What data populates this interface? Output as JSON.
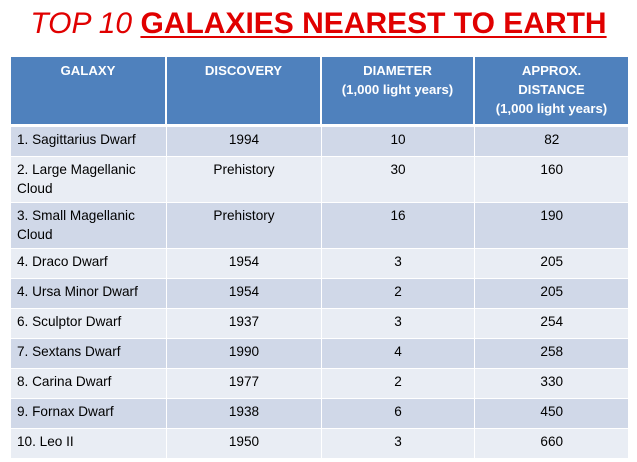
{
  "title": {
    "prefix": "TOP 10 ",
    "main": "GALAXIES NEAREST TO EARTH"
  },
  "columns": [
    {
      "line1": "GALAXY",
      "line2": "",
      "line3": ""
    },
    {
      "line1": "DISCOVERY",
      "line2": "",
      "line3": ""
    },
    {
      "line1": "DIAMETER",
      "line2": "(1,000 light years)",
      "line3": ""
    },
    {
      "line1": "APPROX.",
      "line2": "DISTANCE",
      "line3": "(1,000 light years)"
    }
  ],
  "rows": [
    {
      "galaxy": "1. Sagittarius Dwarf",
      "discovery": "1994",
      "diameter": "10",
      "distance": "82"
    },
    {
      "galaxy": "2. Large Magellanic Cloud",
      "discovery": "Prehistory",
      "diameter": "30",
      "distance": "160"
    },
    {
      "galaxy": "3. Small Magellanic Cloud",
      "discovery": "Prehistory",
      "diameter": "16",
      "distance": "190"
    },
    {
      "galaxy": "4. Draco Dwarf",
      "discovery": "1954",
      "diameter": "3",
      "distance": "205"
    },
    {
      "galaxy": "4. Ursa Minor Dwarf",
      "discovery": "1954",
      "diameter": "2",
      "distance": "205"
    },
    {
      "galaxy": "6. Sculptor Dwarf",
      "discovery": "1937",
      "diameter": "3",
      "distance": "254"
    },
    {
      "galaxy": "7. Sextans Dwarf",
      "discovery": "1990",
      "diameter": "4",
      "distance": "258"
    },
    {
      "galaxy": "8. Carina Dwarf",
      "discovery": "1977",
      "diameter": "2",
      "distance": "330"
    },
    {
      "galaxy": "9. Fornax Dwarf",
      "discovery": "1938",
      "diameter": "6",
      "distance": "450"
    },
    {
      "galaxy": "10. Leo II",
      "discovery": "1950",
      "diameter": "3",
      "distance": "660"
    }
  ],
  "colors": {
    "title": "#e00000",
    "header_bg": "#4f81bd",
    "row_odd": "#d0d8e8",
    "row_even": "#e9edf4"
  }
}
